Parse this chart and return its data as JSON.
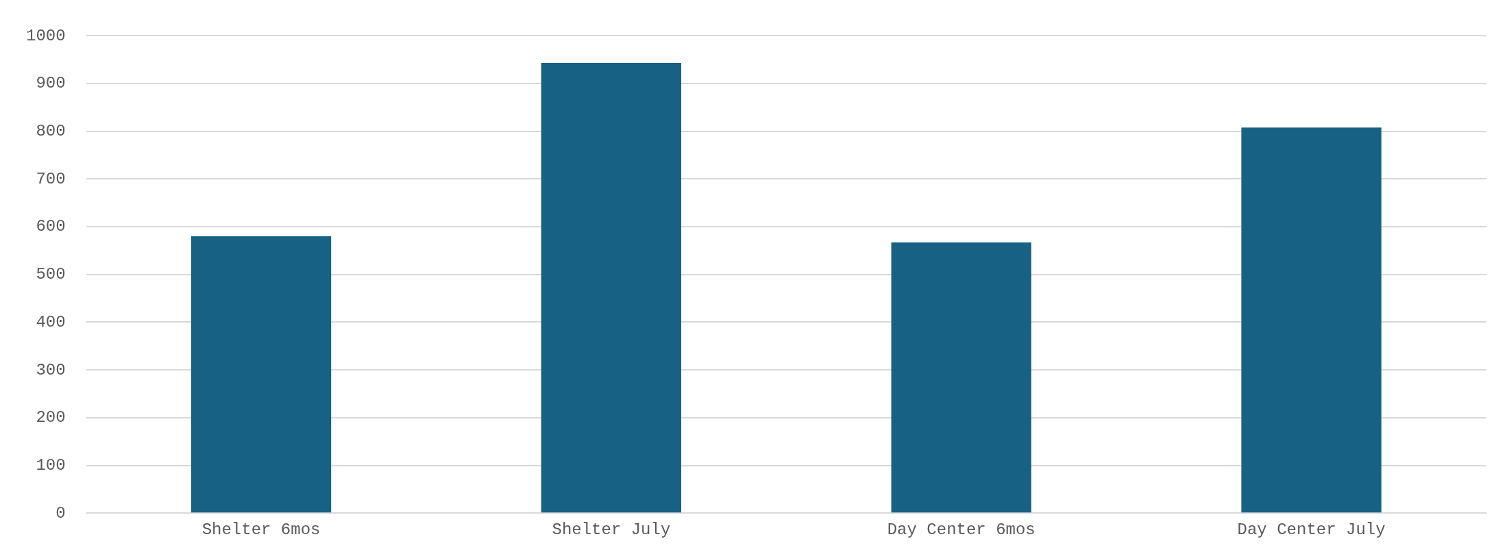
{
  "chart_data": {
    "type": "bar",
    "categories": [
      "Shelter 6mos",
      "Shelter July",
      "Day Center 6mos",
      "Day Center July"
    ],
    "values": [
      580,
      943,
      567,
      808
    ],
    "color": "#176184",
    "ylim": [
      0,
      1000
    ],
    "yticks": [
      0,
      100,
      200,
      300,
      400,
      500,
      600,
      700,
      800,
      900,
      1000
    ],
    "grid": "y"
  }
}
